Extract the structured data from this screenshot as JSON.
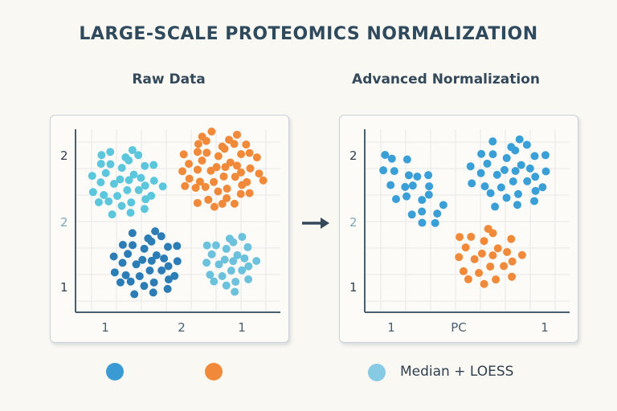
{
  "title": "LARGE-SCALE PROTEOMICS NORMALIZATION",
  "panels": [
    {
      "subtitle": "Raw Data",
      "y_ticks": [
        {
          "label": "2",
          "color": "#2e4050"
        },
        {
          "label": "2",
          "color": "#7fa6b5"
        },
        {
          "label": "1",
          "color": "#2e4050"
        }
      ],
      "x_ticks": [
        "1",
        "2",
        "1"
      ],
      "clusters": [
        {
          "color": "#5cc6dc",
          "count": 36,
          "cx": 2.4,
          "cy": 7.1,
          "rx": 1.8,
          "ry": 2.0,
          "angle": 0
        },
        {
          "color": "#f08a3a",
          "count": 50,
          "cx": 7.1,
          "cy": 7.8,
          "rx": 2.1,
          "ry": 2.2,
          "angle": 0
        },
        {
          "color": "#2c7db6",
          "count": 34,
          "cx": 3.5,
          "cy": 2.7,
          "rx": 1.8,
          "ry": 1.9,
          "angle": 0
        },
        {
          "color": "#6cc1dc",
          "count": 25,
          "cx": 7.5,
          "cy": 2.7,
          "rx": 1.4,
          "ry": 1.6,
          "angle": 0
        }
      ]
    },
    {
      "subtitle": "Advanced Normalization",
      "y_ticks": [
        {
          "label": "2",
          "color": "#2e4050"
        },
        {
          "label": "2",
          "color": "#7fa6b5"
        },
        {
          "label": "1",
          "color": "#2e4050"
        }
      ],
      "x_ticks": [
        "1",
        "PC",
        "1"
      ],
      "clusters": [
        {
          "color": "#3a9fd6",
          "count": 22,
          "cx": 2.3,
          "cy": 6.7,
          "rx": 1.1,
          "ry": 2.6,
          "angle": 35
        },
        {
          "color": "#3a9fd6",
          "count": 33,
          "cx": 7.1,
          "cy": 7.6,
          "rx": 2.1,
          "ry": 2.0,
          "angle": 0
        },
        {
          "color": "#f08a3a",
          "count": 23,
          "cx": 6.0,
          "cy": 3.0,
          "rx": 1.7,
          "ry": 1.8,
          "angle": 0
        }
      ]
    }
  ],
  "legend": [
    {
      "color": "#3a9bd4",
      "label": ""
    },
    {
      "color": "#f08a3a",
      "label": ""
    },
    {
      "color": "#86cbe3",
      "label": "Median + LOESS"
    }
  ]
}
